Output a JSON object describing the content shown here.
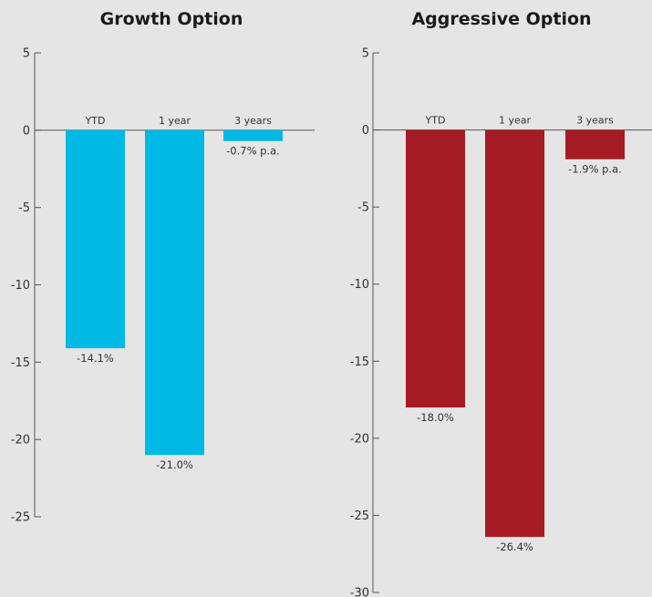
{
  "chart_data": [
    {
      "type": "bar",
      "title": "Growth Option",
      "categories": [
        "YTD",
        "1 year",
        "3 years"
      ],
      "values": [
        -14.1,
        -21.0,
        -0.7
      ],
      "data_labels": [
        "-14.1%",
        "-21.0%",
        "-0.7% p.a."
      ],
      "yticks": [
        5,
        0,
        -5,
        -10,
        -15,
        -20,
        -25
      ],
      "ylim": [
        -25,
        5
      ],
      "color": "#00b9e4",
      "grid": false
    },
    {
      "type": "bar",
      "title": "Aggressive Option",
      "categories": [
        "YTD",
        "1 year",
        "3 years"
      ],
      "values": [
        -18.0,
        -26.4,
        -1.9
      ],
      "data_labels": [
        "-18.0%",
        "-26.4%",
        "-1.9% p.a."
      ],
      "yticks": [
        5,
        0,
        -5,
        -10,
        -15,
        -20,
        -25,
        -30
      ],
      "ylim": [
        -30,
        5
      ],
      "color": "#a61c24",
      "grid": false
    }
  ]
}
